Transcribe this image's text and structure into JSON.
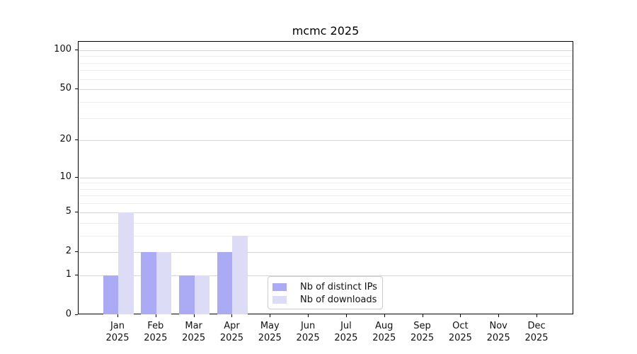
{
  "title": "mcmc 2025",
  "chart_data": {
    "type": "bar",
    "title": "mcmc 2025",
    "xlabel": "",
    "ylabel": "",
    "y_scale": "log1p",
    "ylim": [
      0,
      116
    ],
    "grid": "horizontal",
    "legend_position": "lower center",
    "categories": [
      "Jan",
      "Feb",
      "Mar",
      "Apr",
      "May",
      "Jun",
      "Jul",
      "Aug",
      "Sep",
      "Oct",
      "Nov",
      "Dec"
    ],
    "category_year": "2025",
    "y_major_ticks": [
      0,
      1,
      2,
      5,
      10,
      20,
      50,
      100
    ],
    "y_minor_ticks": [
      3,
      4,
      6,
      7,
      8,
      9,
      30,
      40,
      60,
      70,
      80,
      90
    ],
    "series": [
      {
        "name": "Nb of distinct IPs",
        "color": "#aaaaf5",
        "values": [
          1,
          2,
          1,
          2,
          0,
          0,
          0,
          0,
          0,
          0,
          0,
          0
        ]
      },
      {
        "name": "Nb of downloads",
        "color": "#dcdcf7",
        "values": [
          5,
          2,
          1,
          3,
          0,
          0,
          0,
          0,
          0,
          0,
          0,
          0
        ]
      }
    ]
  },
  "colors": {
    "major_grid": "#d5d5d5",
    "minor_grid": "#ededed",
    "axis": "#000000"
  }
}
